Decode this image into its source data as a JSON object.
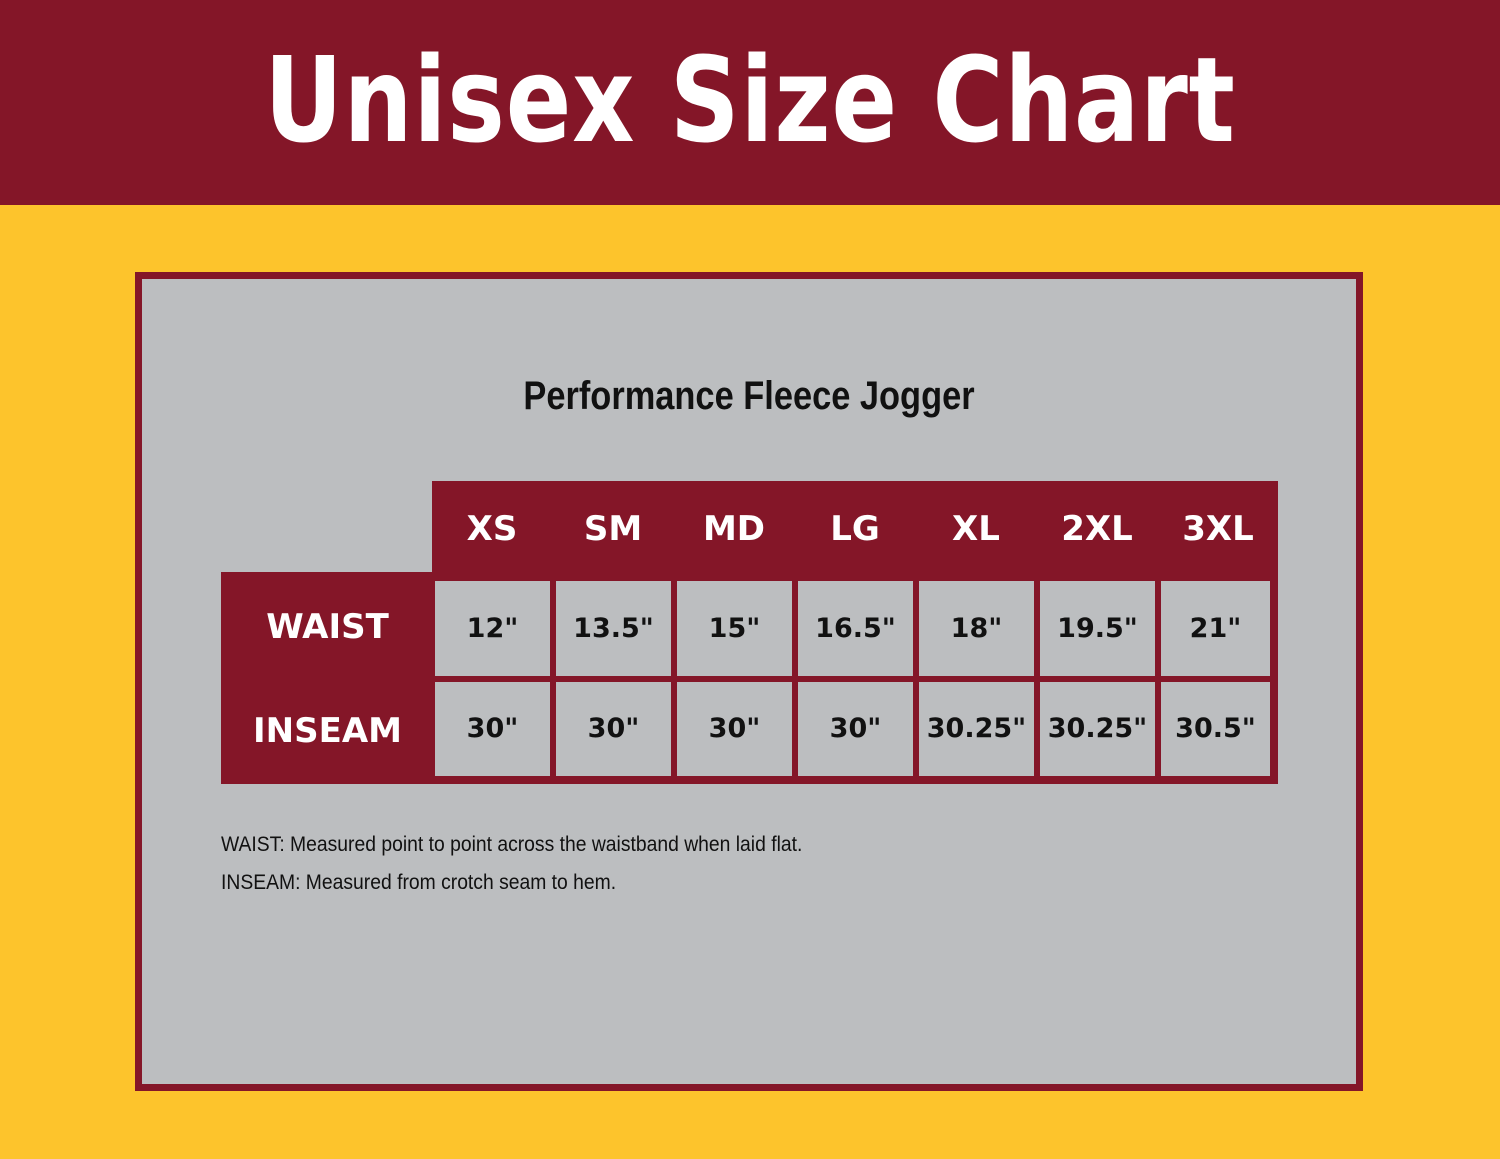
{
  "header": {
    "title": "Unisex Size Chart"
  },
  "product": {
    "title": "Performance Fleece Jogger"
  },
  "colors": {
    "brand_maroon": "#841628",
    "background_gold": "#FDC42C",
    "panel_gray": "#BCBEC0"
  },
  "table": {
    "sizes": [
      "XS",
      "SM",
      "MD",
      "LG",
      "XL",
      "2XL",
      "3XL"
    ],
    "rows": [
      {
        "label": "WAIST",
        "values": [
          "12\"",
          "13.5\"",
          "15\"",
          "16.5\"",
          "18\"",
          "19.5\"",
          "21\""
        ]
      },
      {
        "label": "INSEAM",
        "values": [
          "30\"",
          "30\"",
          "30\"",
          "30\"",
          "30.25\"",
          "30.25\"",
          "30.5\""
        ]
      }
    ]
  },
  "notes": [
    "WAIST: Measured point to point across the waistband when laid flat.",
    "INSEAM: Measured from crotch seam to hem."
  ]
}
